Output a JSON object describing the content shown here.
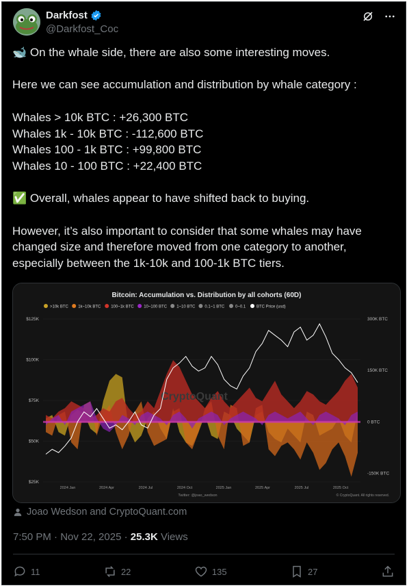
{
  "post": {
    "display_name": "Darkfost",
    "handle": "@Darkfost_Coc",
    "verified_icon": "verified-badge-icon",
    "lines": [
      "🐋 On the whale side, there are also some interesting moves.",
      "",
      "Here we can see accumulation and distribution by whale category :",
      "",
      "Whales > 10k BTC : +26,300 BTC",
      "Whales 1k - 10k BTC : -112,600 BTC",
      "Whales 100 - 1k BTC : +99,800 BTC",
      "Whales 10 - 100 BTC : +22,400 BTC",
      "",
      "✅ Overall, whales appear to have shifted back to buying.",
      "",
      "However, it’s also important to consider that some whales may have changed size and therefore moved from one category to another, especially between the 1k-10k and 100-1k BTC tiers."
    ],
    "author_credit": "Joao Wedson and CryptoQuant.com",
    "time": "7:50 PM · Nov 22, 2025 · ",
    "views_count": "25.3K",
    "views_label": " Views",
    "replies": "11",
    "reposts": "22",
    "likes": "135",
    "bookmarks": "27"
  },
  "chart_data": {
    "type": "area",
    "title": "Bitcoin: Accumulation vs. Distribution by all cohorts (60D)",
    "legend": [
      ">10k BTC",
      "1k~10k BTC",
      "100~1k BTC",
      "10~100 BTC",
      "1~10 BTC",
      "0.1~1 BTC",
      "0~0.1",
      "BTC Price (usd)"
    ],
    "legend_colors": [
      "#c9a227",
      "#e07b20",
      "#d2342a",
      "#9b27c8",
      "#888888",
      "#888888",
      "#888888",
      "#ffffff"
    ],
    "x_ticks": [
      "2024 Jan",
      "2024 Apr",
      "2024 Jul",
      "2024 Oct",
      "2025 Jan",
      "2025 Apr",
      "2025 Jul",
      "2025 Oct"
    ],
    "y_left_ticks": [
      "$125K",
      "$100K",
      "$75K",
      "$50K",
      "$25K"
    ],
    "y_right_ticks": [
      "300K BTC",
      "150K BTC",
      "0 BTC",
      "-150K BTC"
    ],
    "ylim_left": [
      25000,
      125000
    ],
    "ylim_right": [
      -175000,
      300000
    ],
    "watermark": "CryptoQuant",
    "credit_left": "Twitter: @joao_wedson",
    "credit_right": "© CryptoQuant. All rights reserved.",
    "price": [
      42,
      45,
      43,
      47,
      52,
      62,
      68,
      65,
      70,
      64,
      58,
      60,
      57,
      62,
      68,
      60,
      58,
      66,
      70,
      88,
      95,
      98,
      102,
      96,
      93,
      95,
      102,
      97,
      88,
      84,
      82,
      90,
      95,
      105,
      110,
      118,
      115,
      112,
      108,
      117,
      120,
      112,
      115,
      122,
      114,
      104,
      100,
      95,
      92,
      86
    ],
    "series": [
      {
        "name": ">10k BTC",
        "values": [
          10,
          20,
          -30,
          -40,
          20,
          35,
          25,
          -20,
          -35,
          60,
          120,
          140,
          130,
          -20,
          -60,
          -40,
          10,
          30,
          -20,
          -50,
          40,
          -30,
          -60,
          -70,
          -30,
          20,
          -40,
          -50,
          30,
          20,
          -20,
          -40,
          -60,
          20,
          30,
          -30,
          -50,
          -60,
          -20,
          -40,
          -60,
          30,
          20,
          -40,
          -30,
          -20,
          10,
          -40,
          -60,
          30
        ]
      },
      {
        "name": "1k~10k BTC",
        "values": [
          -30,
          -40,
          20,
          30,
          -60,
          -80,
          50,
          60,
          -40,
          20,
          50,
          -30,
          -80,
          -40,
          30,
          60,
          -30,
          -70,
          -60,
          -50,
          30,
          40,
          -60,
          -80,
          -30,
          40,
          60,
          -40,
          -80,
          50,
          40,
          -70,
          -60,
          40,
          50,
          -80,
          -100,
          -70,
          -60,
          -80,
          -110,
          -60,
          -90,
          -140,
          -120,
          -80,
          -60,
          -100,
          -160,
          -90
        ]
      },
      {
        "name": "100~1k BTC",
        "values": [
          20,
          10,
          30,
          40,
          60,
          50,
          40,
          10,
          20,
          40,
          30,
          60,
          70,
          40,
          20,
          30,
          60,
          40,
          90,
          140,
          180,
          160,
          120,
          80,
          60,
          40,
          70,
          90,
          60,
          40,
          60,
          80,
          100,
          70,
          60,
          90,
          120,
          80,
          60,
          40,
          60,
          90,
          80,
          60,
          50,
          70,
          90,
          120,
          140,
          100
        ]
      },
      {
        "name": "10~100 BTC",
        "values": [
          -10,
          10,
          20,
          -10,
          30,
          40,
          50,
          60,
          10,
          -20,
          -30,
          -10,
          20,
          10,
          -10,
          20,
          30,
          20,
          10,
          -10,
          20,
          30,
          10,
          -20,
          10,
          20,
          30,
          20,
          -10,
          10,
          20,
          30,
          20,
          10,
          -10,
          20,
          30,
          20,
          10,
          20,
          30,
          10,
          -10,
          20,
          30,
          20,
          10,
          -10,
          20,
          30
        ]
      }
    ]
  }
}
